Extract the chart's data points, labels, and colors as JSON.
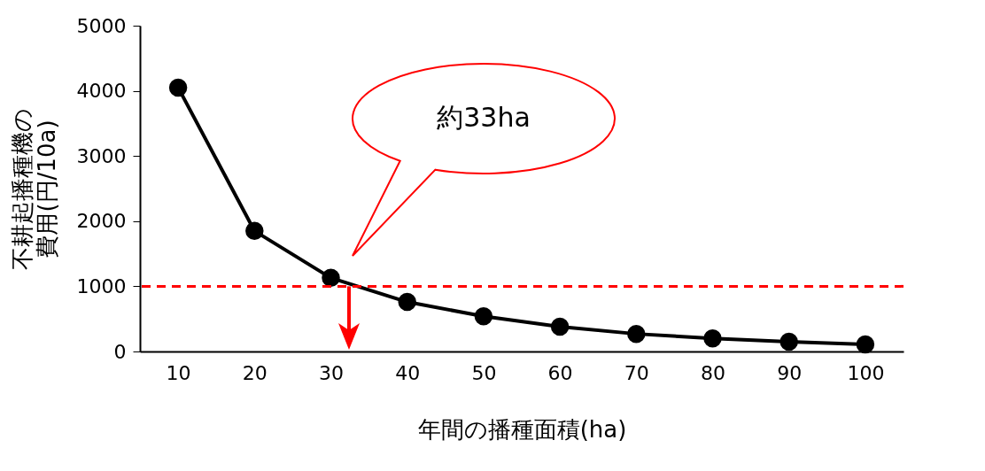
{
  "chart_data": {
    "type": "line",
    "xlabel": "年間の播種面積(ha)",
    "ylabel": "不耕起播種機の費用(円/10a)",
    "x": [
      10,
      20,
      30,
      40,
      50,
      60,
      70,
      80,
      90,
      100
    ],
    "series": [
      {
        "color": "#000000",
        "values": [
          4050,
          1850,
          1130,
          760,
          540,
          380,
          270,
          200,
          150,
          110
        ]
      }
    ],
    "xlim": [
      5,
      105
    ],
    "xticks": [
      10,
      20,
      30,
      40,
      50,
      60,
      70,
      80,
      90,
      100
    ],
    "ylim": [
      0,
      5000
    ],
    "yticks": [
      0,
      1000,
      2000,
      3000,
      4000,
      5000
    ],
    "ref_lines": [
      {
        "axis": "y",
        "value": 1000,
        "color": "#ff0000",
        "line_style": "dashed"
      }
    ],
    "annotations": [
      "約33ha"
    ],
    "grid": false,
    "legend": false,
    "marker": "circle",
    "line_style": "solid"
  }
}
